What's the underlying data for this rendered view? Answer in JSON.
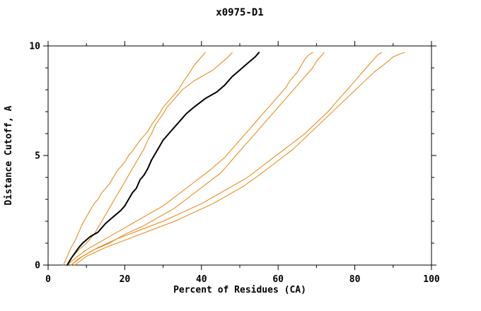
{
  "chart_data": {
    "type": "line",
    "title": "x0975-D1",
    "xlabel": "Percent of Residues (CA)",
    "ylabel": "Distance Cutoff, A",
    "xlim": [
      0,
      100
    ],
    "ylim": [
      0,
      10
    ],
    "x_major_ticks": [
      0,
      20,
      40,
      60,
      80,
      100
    ],
    "x_minor_step": 10,
    "y_major_ticks": [
      0,
      5,
      10
    ],
    "y_minor_step": 1,
    "grid": false,
    "legend": "none",
    "frame_color": "#000000",
    "accent_color": "#e8820c",
    "series": [
      {
        "name": "orange-curve-1",
        "color": "#e8820c",
        "width": 1,
        "points": [
          [
            4,
            0
          ],
          [
            5,
            0.4
          ],
          [
            6,
            0.8
          ],
          [
            7,
            1.1
          ],
          [
            8,
            1.5
          ],
          [
            9,
            1.9
          ],
          [
            10,
            2.2
          ],
          [
            11,
            2.5
          ],
          [
            12,
            2.8
          ],
          [
            13,
            3.0
          ],
          [
            14,
            3.3
          ],
          [
            16,
            3.7
          ],
          [
            17,
            4.0
          ],
          [
            18,
            4.3
          ],
          [
            20,
            4.7
          ],
          [
            21,
            5.0
          ],
          [
            22,
            5.2
          ],
          [
            24,
            5.7
          ],
          [
            26,
            6.1
          ],
          [
            27,
            6.4
          ],
          [
            29,
            6.9
          ],
          [
            30,
            7.2
          ],
          [
            32,
            7.6
          ],
          [
            34,
            8.0
          ],
          [
            35,
            8.3
          ],
          [
            37,
            8.8
          ],
          [
            38,
            9.1
          ],
          [
            40,
            9.5
          ],
          [
            41,
            9.7
          ]
        ]
      },
      {
        "name": "orange-curve-2",
        "color": "#e8820c",
        "width": 1,
        "points": [
          [
            5,
            0
          ],
          [
            6,
            0.3
          ],
          [
            8,
            0.7
          ],
          [
            10,
            1.0
          ],
          [
            12,
            1.4
          ],
          [
            13,
            1.7
          ],
          [
            14,
            2.0
          ],
          [
            15,
            2.3
          ],
          [
            16,
            2.6
          ],
          [
            17,
            2.9
          ],
          [
            18,
            3.2
          ],
          [
            19,
            3.5
          ],
          [
            20,
            3.8
          ],
          [
            21,
            4.1
          ],
          [
            22,
            4.4
          ],
          [
            23,
            4.7
          ],
          [
            24,
            5.0
          ],
          [
            25,
            5.3
          ],
          [
            26,
            5.7
          ],
          [
            27,
            6.0
          ],
          [
            28,
            6.4
          ],
          [
            30,
            6.9
          ],
          [
            31,
            7.2
          ],
          [
            33,
            7.6
          ],
          [
            35,
            8.0
          ],
          [
            38,
            8.4
          ],
          [
            40,
            8.6
          ],
          [
            43,
            8.9
          ],
          [
            45,
            9.2
          ],
          [
            47,
            9.5
          ],
          [
            48,
            9.7
          ]
        ]
      },
      {
        "name": "orange-curve-3",
        "color": "#e8820c",
        "width": 1,
        "points": [
          [
            5,
            0
          ],
          [
            7,
            0.3
          ],
          [
            10,
            0.7
          ],
          [
            14,
            1.1
          ],
          [
            18,
            1.5
          ],
          [
            22,
            1.9
          ],
          [
            26,
            2.3
          ],
          [
            30,
            2.7
          ],
          [
            33,
            3.1
          ],
          [
            36,
            3.5
          ],
          [
            39,
            3.9
          ],
          [
            42,
            4.3
          ],
          [
            44,
            4.6
          ],
          [
            46,
            4.9
          ],
          [
            48,
            5.3
          ],
          [
            50,
            5.7
          ],
          [
            52,
            6.1
          ],
          [
            54,
            6.5
          ],
          [
            56,
            6.9
          ],
          [
            58,
            7.3
          ],
          [
            60,
            7.7
          ],
          [
            62,
            8.1
          ],
          [
            63,
            8.4
          ],
          [
            65,
            8.8
          ],
          [
            66,
            9.1
          ],
          [
            67,
            9.4
          ],
          [
            68,
            9.6
          ],
          [
            69,
            9.7
          ]
        ]
      },
      {
        "name": "orange-curve-4",
        "color": "#e8820c",
        "width": 1,
        "points": [
          [
            6,
            0
          ],
          [
            8,
            0.3
          ],
          [
            12,
            0.7
          ],
          [
            16,
            1.0
          ],
          [
            20,
            1.4
          ],
          [
            25,
            1.8
          ],
          [
            29,
            2.2
          ],
          [
            33,
            2.6
          ],
          [
            36,
            3.0
          ],
          [
            39,
            3.4
          ],
          [
            42,
            3.8
          ],
          [
            45,
            4.2
          ],
          [
            47,
            4.6
          ],
          [
            49,
            5.0
          ],
          [
            51,
            5.4
          ],
          [
            53,
            5.8
          ],
          [
            55,
            6.2
          ],
          [
            57,
            6.6
          ],
          [
            59,
            7.0
          ],
          [
            61,
            7.4
          ],
          [
            63,
            7.8
          ],
          [
            65,
            8.2
          ],
          [
            67,
            8.6
          ],
          [
            69,
            9.0
          ],
          [
            70,
            9.3
          ],
          [
            71,
            9.5
          ],
          [
            72,
            9.7
          ]
        ]
      },
      {
        "name": "orange-curve-5",
        "color": "#e8820c",
        "width": 1,
        "points": [
          [
            6,
            0
          ],
          [
            9,
            0.4
          ],
          [
            13,
            0.8
          ],
          [
            18,
            1.2
          ],
          [
            24,
            1.6
          ],
          [
            30,
            2.0
          ],
          [
            35,
            2.4
          ],
          [
            40,
            2.8
          ],
          [
            44,
            3.2
          ],
          [
            48,
            3.6
          ],
          [
            52,
            4.0
          ],
          [
            55,
            4.4
          ],
          [
            58,
            4.8
          ],
          [
            61,
            5.2
          ],
          [
            64,
            5.6
          ],
          [
            67,
            6.0
          ],
          [
            70,
            6.5
          ],
          [
            73,
            7.0
          ],
          [
            75,
            7.4
          ],
          [
            77,
            7.8
          ],
          [
            79,
            8.2
          ],
          [
            81,
            8.6
          ],
          [
            83,
            9.0
          ],
          [
            85,
            9.4
          ],
          [
            86,
            9.6
          ],
          [
            87,
            9.7
          ]
        ]
      },
      {
        "name": "orange-curve-6",
        "color": "#e8820c",
        "width": 1,
        "points": [
          [
            7,
            0
          ],
          [
            10,
            0.4
          ],
          [
            15,
            0.8
          ],
          [
            21,
            1.2
          ],
          [
            27,
            1.6
          ],
          [
            33,
            2.0
          ],
          [
            38,
            2.4
          ],
          [
            43,
            2.8
          ],
          [
            47,
            3.2
          ],
          [
            51,
            3.6
          ],
          [
            55,
            4.1
          ],
          [
            58,
            4.5
          ],
          [
            61,
            4.9
          ],
          [
            64,
            5.3
          ],
          [
            67,
            5.8
          ],
          [
            70,
            6.3
          ],
          [
            73,
            6.8
          ],
          [
            76,
            7.3
          ],
          [
            79,
            7.8
          ],
          [
            82,
            8.3
          ],
          [
            85,
            8.8
          ],
          [
            88,
            9.2
          ],
          [
            90,
            9.5
          ],
          [
            92,
            9.65
          ],
          [
            93,
            9.7
          ]
        ]
      },
      {
        "name": "black-curve",
        "color": "#000000",
        "width": 2,
        "points": [
          [
            5,
            0
          ],
          [
            6,
            0.3
          ],
          [
            8,
            0.8
          ],
          [
            9,
            1.0
          ],
          [
            11,
            1.3
          ],
          [
            13,
            1.5
          ],
          [
            15,
            1.9
          ],
          [
            17,
            2.2
          ],
          [
            19,
            2.5
          ],
          [
            20,
            2.7
          ],
          [
            21,
            3.0
          ],
          [
            22,
            3.3
          ],
          [
            23,
            3.5
          ],
          [
            24,
            3.9
          ],
          [
            25,
            4.1
          ],
          [
            26,
            4.4
          ],
          [
            27,
            4.8
          ],
          [
            28,
            5.1
          ],
          [
            29,
            5.4
          ],
          [
            30,
            5.7
          ],
          [
            31,
            5.9
          ],
          [
            32,
            6.1
          ],
          [
            34,
            6.5
          ],
          [
            36,
            6.9
          ],
          [
            38,
            7.2
          ],
          [
            41,
            7.6
          ],
          [
            44,
            7.9
          ],
          [
            46,
            8.2
          ],
          [
            48,
            8.6
          ],
          [
            50,
            8.9
          ],
          [
            52,
            9.2
          ],
          [
            54,
            9.5
          ],
          [
            55,
            9.7
          ]
        ]
      }
    ]
  }
}
